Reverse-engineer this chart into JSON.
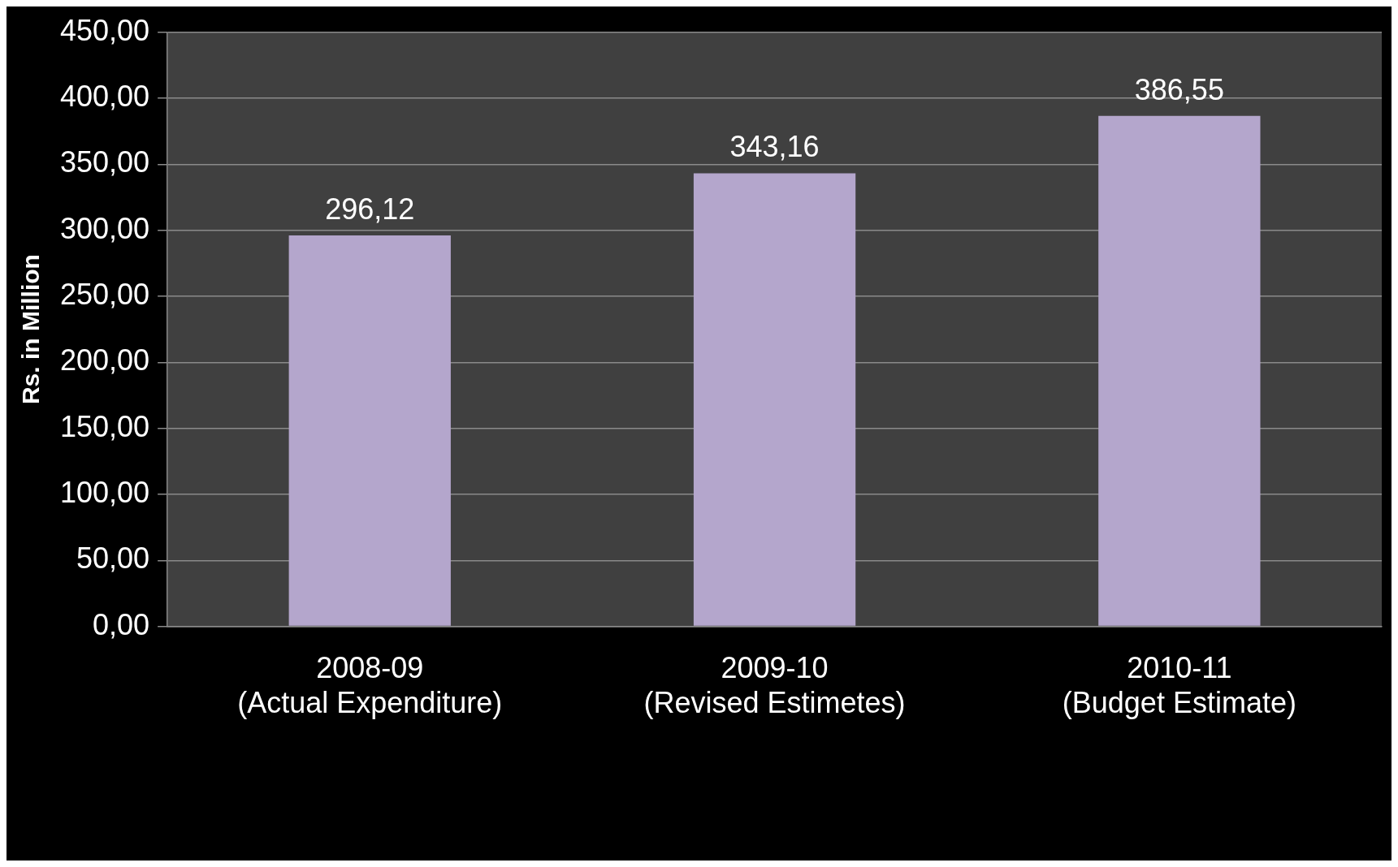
{
  "chart_data": {
    "type": "bar",
    "ylabel": "Rs. in Million",
    "categories": [
      "2008-09\n(Actual Expenditure)",
      "2009-10\n(Revised Estimetes)",
      "2010-11\n(Budget Estimate)"
    ],
    "values": [
      296.12,
      343.16,
      386.55
    ],
    "value_labels": [
      "296,12",
      "343,16",
      "386,55"
    ],
    "color": "#b4a6cc",
    "ylim": [
      0,
      450
    ],
    "yticks": [
      {
        "value": 0,
        "label": "0,00"
      },
      {
        "value": 50,
        "label": "50,00"
      },
      {
        "value": 100,
        "label": "100,00"
      },
      {
        "value": 150,
        "label": "150,00"
      },
      {
        "value": 200,
        "label": "200,00"
      },
      {
        "value": 250,
        "label": "250,00"
      },
      {
        "value": 300,
        "label": "300,00"
      },
      {
        "value": 350,
        "label": "350,00"
      },
      {
        "value": 400,
        "label": "400,00"
      },
      {
        "value": 450,
        "label": "450,00"
      }
    ],
    "grid": "y",
    "legend": false
  }
}
